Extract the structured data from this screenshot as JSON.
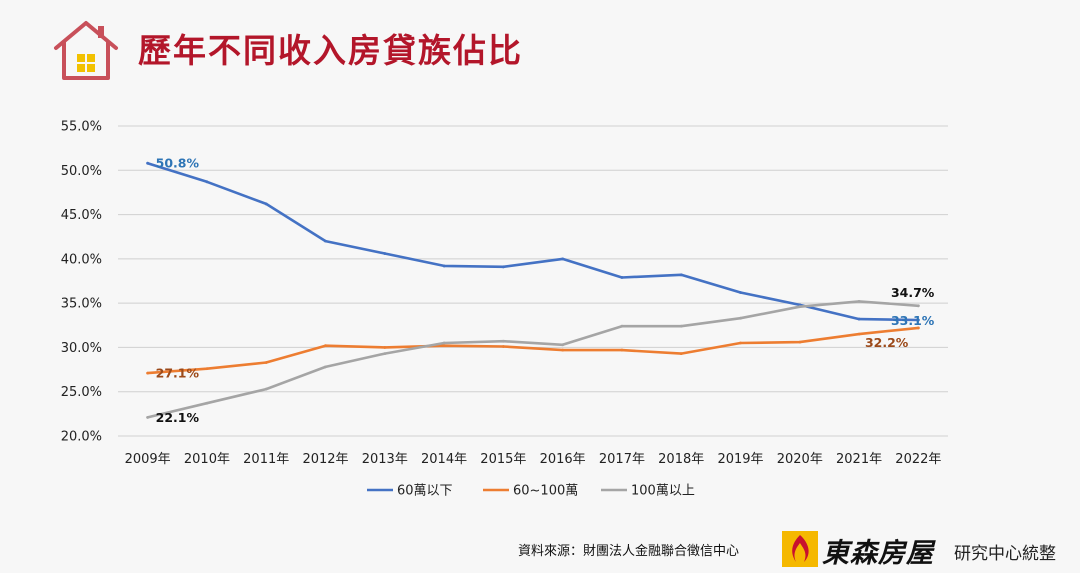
{
  "header": {
    "title": "歷年不同收入房貸族佔比"
  },
  "chart_data": {
    "type": "line",
    "title": "",
    "xlabel": "",
    "ylabel": "",
    "categories": [
      "2009年",
      "2010年",
      "2011年",
      "2012年",
      "2013年",
      "2014年",
      "2015年",
      "2016年",
      "2017年",
      "2018年",
      "2019年",
      "2020年",
      "2021年",
      "2022年"
    ],
    "ylim": [
      20,
      55
    ],
    "yticks": [
      55,
      50,
      45,
      40,
      35,
      30,
      25,
      20
    ],
    "ytick_labels": [
      "55.0%",
      "50.0%",
      "45.0%",
      "40.0%",
      "35.0%",
      "30.0%",
      "25.0%",
      "20.0%"
    ],
    "grid": "horizontal",
    "legend_position": "bottom",
    "series": [
      {
        "name": "60萬以下",
        "color": "#4472c4",
        "values": [
          50.8,
          48.7,
          46.2,
          42.0,
          40.6,
          39.2,
          39.1,
          40.0,
          37.9,
          38.2,
          36.2,
          34.8,
          33.2,
          33.1
        ],
        "labels": [
          {
            "index": 0,
            "text": "50.8%",
            "color": "#2e75b6"
          },
          {
            "index": 13,
            "text": "33.1%",
            "color": "#2e75b6"
          }
        ]
      },
      {
        "name": "60~100萬",
        "color": "#ed7d31",
        "values": [
          27.1,
          27.6,
          28.3,
          30.2,
          30.0,
          30.2,
          30.1,
          29.7,
          29.7,
          29.3,
          30.5,
          30.6,
          31.5,
          32.2
        ],
        "labels": [
          {
            "index": 0,
            "text": "27.1%",
            "color": "#9c4a1a"
          },
          {
            "index": 13,
            "text": "32.2%",
            "color": "#9c4a1a"
          }
        ]
      },
      {
        "name": "100萬以上",
        "color": "#a5a5a5",
        "values": [
          22.1,
          23.7,
          25.3,
          27.8,
          29.3,
          30.5,
          30.7,
          30.3,
          32.4,
          32.4,
          33.3,
          34.6,
          35.2,
          34.7
        ],
        "labels": [
          {
            "index": 0,
            "text": "22.1%",
            "color": "#111111"
          },
          {
            "index": 13,
            "text": "34.7%",
            "color": "#111111"
          }
        ]
      }
    ]
  },
  "footer": {
    "source": "資料來源：財團法人金融聯合徵信中心",
    "brand_name": "東森房屋",
    "brand_suffix": "研究中心統整",
    "brand_logo_icon": "flame-logo-icon"
  }
}
